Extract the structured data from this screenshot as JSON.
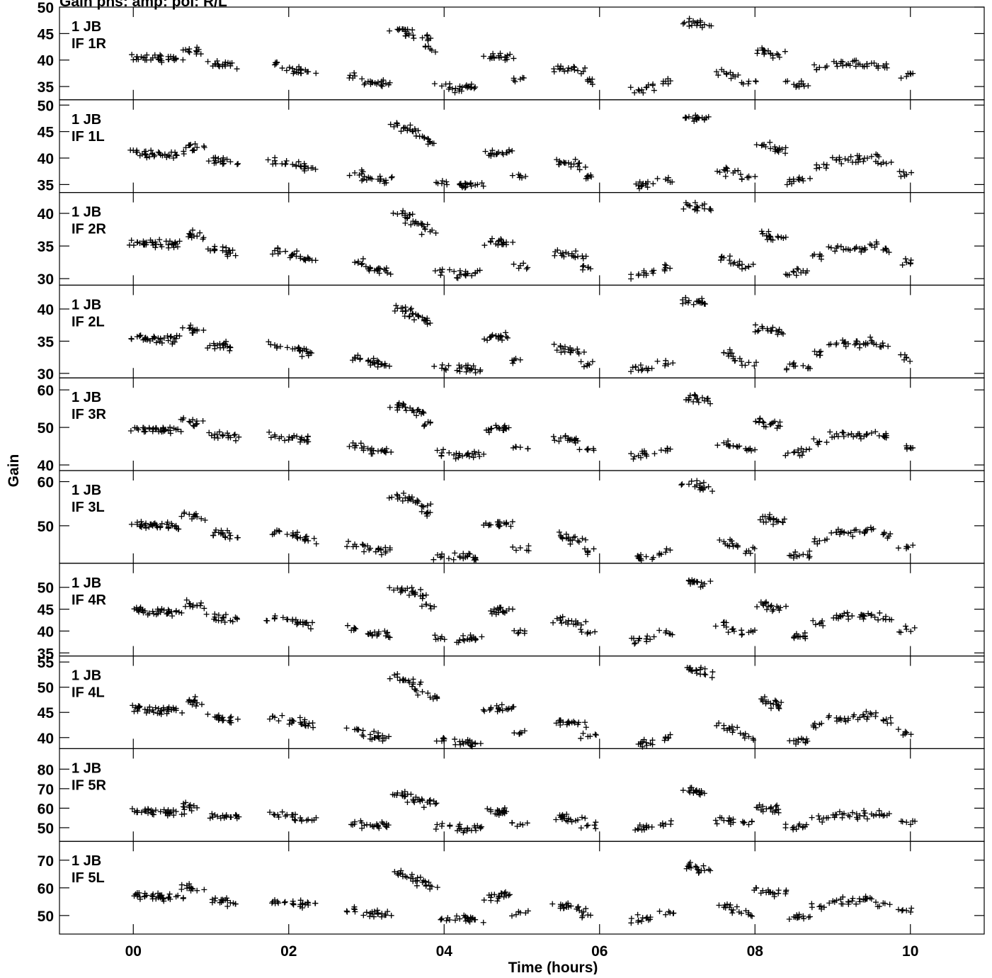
{
  "figure": {
    "title": "Gain phs: amp: pol: R/L",
    "ylabel": "Gain",
    "xlabel": "Time (hours)"
  },
  "chart_data": {
    "type": "scatter",
    "marker": "+",
    "color": "#000000",
    "xlim": [
      -0.95,
      10.95
    ],
    "x_ticks": [
      0,
      2,
      4,
      6,
      8,
      10
    ],
    "x_tick_labels": [
      "00",
      "02",
      "04",
      "06",
      "08",
      "10"
    ],
    "xlabel": "Time (hours)",
    "ylabel": "Gain",
    "scan_times": [
      0.05,
      0.15,
      0.25,
      0.35,
      0.45,
      0.55,
      0.72,
      0.82,
      1.05,
      1.15,
      1.25,
      1.82,
      2.05,
      2.15,
      2.25,
      2.85,
      3.05,
      3.15,
      3.25,
      3.4,
      3.5,
      3.6,
      3.72,
      3.82,
      3.97,
      4.2,
      4.3,
      4.4,
      4.6,
      4.7,
      4.8,
      4.98,
      5.5,
      5.6,
      5.72,
      5.85,
      6.5,
      6.6,
      6.85,
      7.15,
      7.25,
      7.35,
      7.6,
      7.72,
      7.92,
      8.1,
      8.2,
      8.3,
      8.5,
      8.62,
      8.83,
      9.05,
      9.2,
      9.35,
      9.5,
      9.65,
      9.95
    ],
    "panels": [
      {
        "label": [
          "1 JB",
          "IF 1R"
        ],
        "ylim": [
          32.5,
          50
        ],
        "yticks": [
          35,
          40,
          45,
          50
        ],
        "values": [
          40.6,
          40.5,
          40.4,
          40.2,
          40.1,
          40.3,
          42.1,
          41.7,
          39.3,
          39.2,
          38.9,
          39.1,
          38.4,
          38.1,
          37.8,
          37.0,
          36.0,
          35.8,
          35.6,
          45.8,
          45.4,
          44.7,
          44.2,
          42.1,
          35.1,
          34.5,
          34.8,
          34.9,
          40.6,
          40.8,
          40.5,
          36.4,
          38.4,
          38.5,
          38.0,
          36.0,
          34.4,
          34.8,
          36.0,
          47.2,
          47.0,
          46.7,
          37.8,
          37.2,
          36.0,
          41.9,
          41.3,
          41.0,
          35.4,
          35.5,
          38.6,
          39.4,
          39.3,
          39.2,
          39.4,
          38.9,
          36.9
        ]
      },
      {
        "label": [
          "1 JB",
          "IF 1L"
        ],
        "ylim": [
          33.5,
          51
        ],
        "yticks": [
          35,
          40,
          45,
          50
        ],
        "values": [
          41.1,
          40.8,
          40.7,
          40.6,
          40.5,
          40.6,
          42.4,
          42.0,
          39.5,
          39.6,
          39.3,
          39.5,
          38.8,
          38.5,
          38.1,
          37.2,
          36.2,
          36.0,
          35.8,
          46.2,
          45.7,
          45.0,
          44.1,
          43.0,
          35.2,
          35.1,
          35.0,
          34.9,
          40.9,
          41.1,
          41.0,
          36.7,
          39.1,
          39.1,
          38.4,
          36.2,
          34.8,
          35.1,
          36.0,
          47.8,
          47.6,
          47.2,
          37.8,
          37.2,
          36.3,
          42.5,
          41.8,
          41.5,
          35.6,
          35.7,
          38.2,
          39.7,
          39.6,
          39.8,
          40.3,
          39.2,
          36.9
        ]
      },
      {
        "label": [
          "1 JB",
          "IF 2R"
        ],
        "ylim": [
          29,
          43.2
        ],
        "yticks": [
          30,
          35,
          40
        ],
        "values": [
          35.6,
          35.5,
          35.5,
          35.2,
          35.2,
          35.3,
          36.9,
          36.5,
          34.4,
          34.3,
          33.9,
          34.3,
          33.7,
          33.4,
          33.1,
          32.5,
          31.6,
          31.5,
          31.2,
          39.9,
          39.4,
          38.8,
          38.4,
          37.2,
          31.0,
          30.6,
          30.8,
          30.8,
          35.6,
          35.7,
          35.6,
          32.0,
          33.9,
          33.8,
          33.4,
          31.7,
          30.5,
          30.8,
          31.7,
          41.2,
          41.0,
          40.7,
          33.2,
          32.3,
          31.8,
          36.9,
          36.4,
          36.3,
          31.0,
          31.2,
          33.4,
          34.7,
          34.5,
          34.6,
          35.1,
          34.4,
          32.5
        ]
      },
      {
        "label": [
          "1 JB",
          "IF 2L"
        ],
        "ylim": [
          29.3,
          43.7
        ],
        "yticks": [
          30,
          35,
          40
        ],
        "values": [
          35.7,
          35.5,
          35.4,
          35.3,
          35.1,
          35.4,
          37.0,
          36.6,
          34.3,
          34.4,
          34.0,
          34.4,
          33.8,
          33.6,
          33.1,
          32.5,
          31.8,
          31.5,
          31.2,
          40.1,
          39.7,
          39.2,
          38.7,
          37.8,
          30.8,
          30.8,
          30.7,
          30.6,
          35.6,
          35.8,
          35.7,
          32.1,
          34.1,
          33.7,
          33.3,
          31.5,
          30.5,
          30.8,
          31.5,
          41.3,
          41.2,
          40.8,
          33.2,
          32.3,
          31.7,
          37.0,
          36.6,
          36.5,
          31.1,
          31.2,
          33.3,
          34.7,
          34.6,
          34.5,
          35.1,
          34.3,
          32.4
        ]
      },
      {
        "label": [
          "1 JB",
          "IF 3R"
        ],
        "ylim": [
          38.5,
          63.2
        ],
        "yticks": [
          40,
          50,
          60
        ],
        "values": [
          49.8,
          49.6,
          49.5,
          49.3,
          49.2,
          49.4,
          51.6,
          51.0,
          48.2,
          48.0,
          47.3,
          48.0,
          47.2,
          46.9,
          46.2,
          45.1,
          44.0,
          43.7,
          43.3,
          56.0,
          55.4,
          54.6,
          54.1,
          51.2,
          43.2,
          42.5,
          42.9,
          42.9,
          49.6,
          49.9,
          49.6,
          44.7,
          47.2,
          47.1,
          46.4,
          44.0,
          42.5,
          42.8,
          43.8,
          57.9,
          57.6,
          57.1,
          45.9,
          45.1,
          44.1,
          51.5,
          50.8,
          50.5,
          43.3,
          43.5,
          46.3,
          48.3,
          48.0,
          47.8,
          48.5,
          47.7,
          45.1
        ]
      },
      {
        "label": [
          "1 JB",
          "IF 3L"
        ],
        "ylim": [
          41.5,
          62.5
        ],
        "yticks": [
          50,
          60
        ],
        "values": [
          50.3,
          50.1,
          50.0,
          49.8,
          49.7,
          50.0,
          52.6,
          52.0,
          48.5,
          48.4,
          47.8,
          48.6,
          47.7,
          47.3,
          46.6,
          45.8,
          44.9,
          44.6,
          44.2,
          56.8,
          56.3,
          55.6,
          54.4,
          53.0,
          43.0,
          43.1,
          43.0,
          42.8,
          50.2,
          50.4,
          50.3,
          45.0,
          47.8,
          47.4,
          46.6,
          44.1,
          42.7,
          43.0,
          44.0,
          59.4,
          59.2,
          58.6,
          46.4,
          45.3,
          44.3,
          52.1,
          51.4,
          51.0,
          43.4,
          43.5,
          46.6,
          48.5,
          48.3,
          48.6,
          49.1,
          48.0,
          45.3
        ]
      },
      {
        "label": [
          "1 JB",
          "IF 4R"
        ],
        "ylim": [
          34.3,
          55.5
        ],
        "yticks": [
          35,
          40,
          45,
          50
        ],
        "values": [
          44.8,
          44.6,
          44.5,
          44.3,
          44.2,
          44.4,
          46.3,
          45.8,
          43.2,
          43.0,
          42.4,
          43.0,
          42.3,
          42.0,
          41.3,
          40.6,
          39.6,
          39.3,
          38.9,
          49.8,
          49.3,
          48.7,
          48.1,
          45.8,
          38.7,
          37.9,
          38.2,
          38.3,
          44.6,
          44.8,
          44.6,
          40.2,
          42.5,
          42.4,
          41.8,
          39.7,
          37.8,
          38.2,
          39.6,
          51.6,
          51.3,
          50.8,
          41.3,
          40.5,
          39.7,
          46.2,
          45.6,
          45.3,
          38.6,
          38.8,
          41.7,
          43.6,
          43.4,
          43.2,
          43.8,
          42.8,
          40.4
        ]
      },
      {
        "label": [
          "1 JB",
          "IF 4L"
        ],
        "ylim": [
          37.8,
          56.2
        ],
        "yticks": [
          40,
          45,
          50,
          55
        ],
        "values": [
          45.8,
          45.6,
          45.5,
          45.3,
          45.2,
          45.4,
          47.5,
          46.9,
          44.1,
          44.0,
          43.4,
          44.0,
          43.3,
          43.0,
          42.3,
          41.6,
          40.6,
          40.3,
          39.9,
          52.0,
          51.4,
          50.6,
          49.1,
          48.0,
          39.3,
          39.2,
          39.1,
          38.9,
          45.7,
          45.9,
          45.7,
          41.0,
          43.4,
          43.2,
          42.6,
          40.2,
          38.7,
          39.0,
          40.1,
          53.5,
          53.3,
          52.6,
          42.4,
          41.5,
          40.2,
          47.4,
          46.8,
          46.4,
          39.4,
          39.6,
          42.6,
          43.9,
          43.8,
          44.0,
          44.6,
          43.5,
          41.0
        ]
      },
      {
        "label": [
          "1 JB",
          "IF 5R"
        ],
        "ylim": [
          43,
          90.5
        ],
        "yticks": [
          50,
          60,
          70,
          80
        ],
        "values": [
          58.8,
          58.6,
          58.4,
          58.2,
          57.9,
          58.3,
          61.1,
          60.2,
          56.5,
          56.3,
          55.4,
          56.5,
          55.5,
          55.0,
          54.2,
          53.0,
          51.4,
          51.1,
          50.7,
          67.8,
          66.2,
          64.5,
          64.0,
          62.2,
          50.8,
          49.3,
          49.9,
          50.0,
          58.2,
          58.6,
          58.3,
          51.8,
          55.3,
          54.8,
          54.0,
          51.3,
          49.5,
          50.2,
          51.8,
          68.8,
          68.1,
          67.6,
          53.7,
          52.7,
          51.6,
          60.9,
          59.8,
          59.4,
          50.3,
          50.6,
          54.3,
          56.6,
          56.4,
          56.2,
          57.0,
          56.1,
          52.8
        ]
      },
      {
        "label": [
          "1 JB",
          "IF 5L"
        ],
        "ylim": [
          43.3,
          76.8
        ],
        "yticks": [
          50,
          60,
          70
        ],
        "values": [
          57.5,
          57.0,
          56.8,
          56.5,
          56.3,
          56.8,
          60.2,
          59.0,
          55.3,
          55.5,
          54.6,
          55.6,
          54.3,
          54.0,
          53.8,
          52.2,
          50.8,
          50.5,
          50.2,
          65.2,
          64.2,
          63.3,
          62.0,
          60.8,
          48.9,
          48.8,
          48.8,
          48.5,
          56.5,
          57.0,
          57.2,
          51.0,
          54.0,
          53.6,
          53.0,
          50.2,
          48.2,
          49.0,
          50.3,
          68.0,
          67.5,
          66.3,
          53.0,
          52.0,
          51.0,
          59.0,
          58.4,
          58.0,
          49.5,
          49.8,
          53.2,
          55.5,
          55.0,
          55.0,
          56.0,
          54.5,
          51.8
        ]
      }
    ]
  }
}
